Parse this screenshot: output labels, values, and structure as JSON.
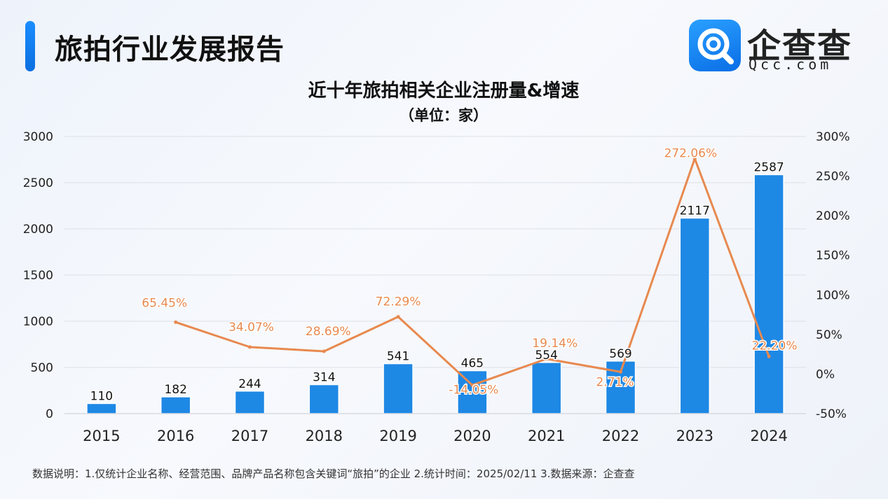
{
  "header": {
    "title": "旅拍行业发展报告",
    "logo_text": "企查查",
    "logo_sub": "Qcc.com"
  },
  "footer": {
    "note": "数据说明：1.仅统计企业名称、经营范围、品牌产品名称包含关键词“旅拍”的企业   2.统计时间：2025/02/11    3.数据来源：企查查"
  },
  "colors": {
    "bar": "#1e88e5",
    "line": "#e8894f",
    "accent": "#1a8dff",
    "grid": "#dcdfe6"
  },
  "chart_data": {
    "type": "bar",
    "title": "近十年旅拍相关企业注册量&增速",
    "subtitle": "（单位：家）",
    "categories": [
      "2015",
      "2016",
      "2017",
      "2018",
      "2019",
      "2020",
      "2021",
      "2022",
      "2023",
      "2024"
    ],
    "series": [
      {
        "type": "bar",
        "axis": "left",
        "values": [
          110,
          182,
          244,
          314,
          541,
          465,
          554,
          569,
          2117,
          2587
        ]
      },
      {
        "type": "line",
        "axis": "right",
        "values": [
          null,
          65.45,
          34.07,
          28.69,
          72.29,
          -14.05,
          19.14,
          2.71,
          272.06,
          22.2
        ],
        "labels": [
          "",
          "65.45%",
          "34.07%",
          "28.69%",
          "72.29%",
          "-14.05%",
          "19.14%",
          "2.71%",
          "272.06%",
          "22.20%"
        ]
      }
    ],
    "left_axis": {
      "ylim": [
        0,
        3000
      ],
      "ticks": [
        "0",
        "500",
        "1000",
        "1500",
        "2000",
        "2500",
        "3000"
      ],
      "tick_values": [
        0,
        500,
        1000,
        1500,
        2000,
        2500,
        3000
      ]
    },
    "right_axis": {
      "ylim": [
        -50,
        300
      ],
      "ticks": [
        "-50%",
        "0%",
        "50%",
        "100%",
        "150%",
        "200%",
        "250%",
        "300%"
      ],
      "tick_values": [
        -50,
        0,
        50,
        100,
        150,
        200,
        250,
        300
      ]
    },
    "grid": true
  }
}
